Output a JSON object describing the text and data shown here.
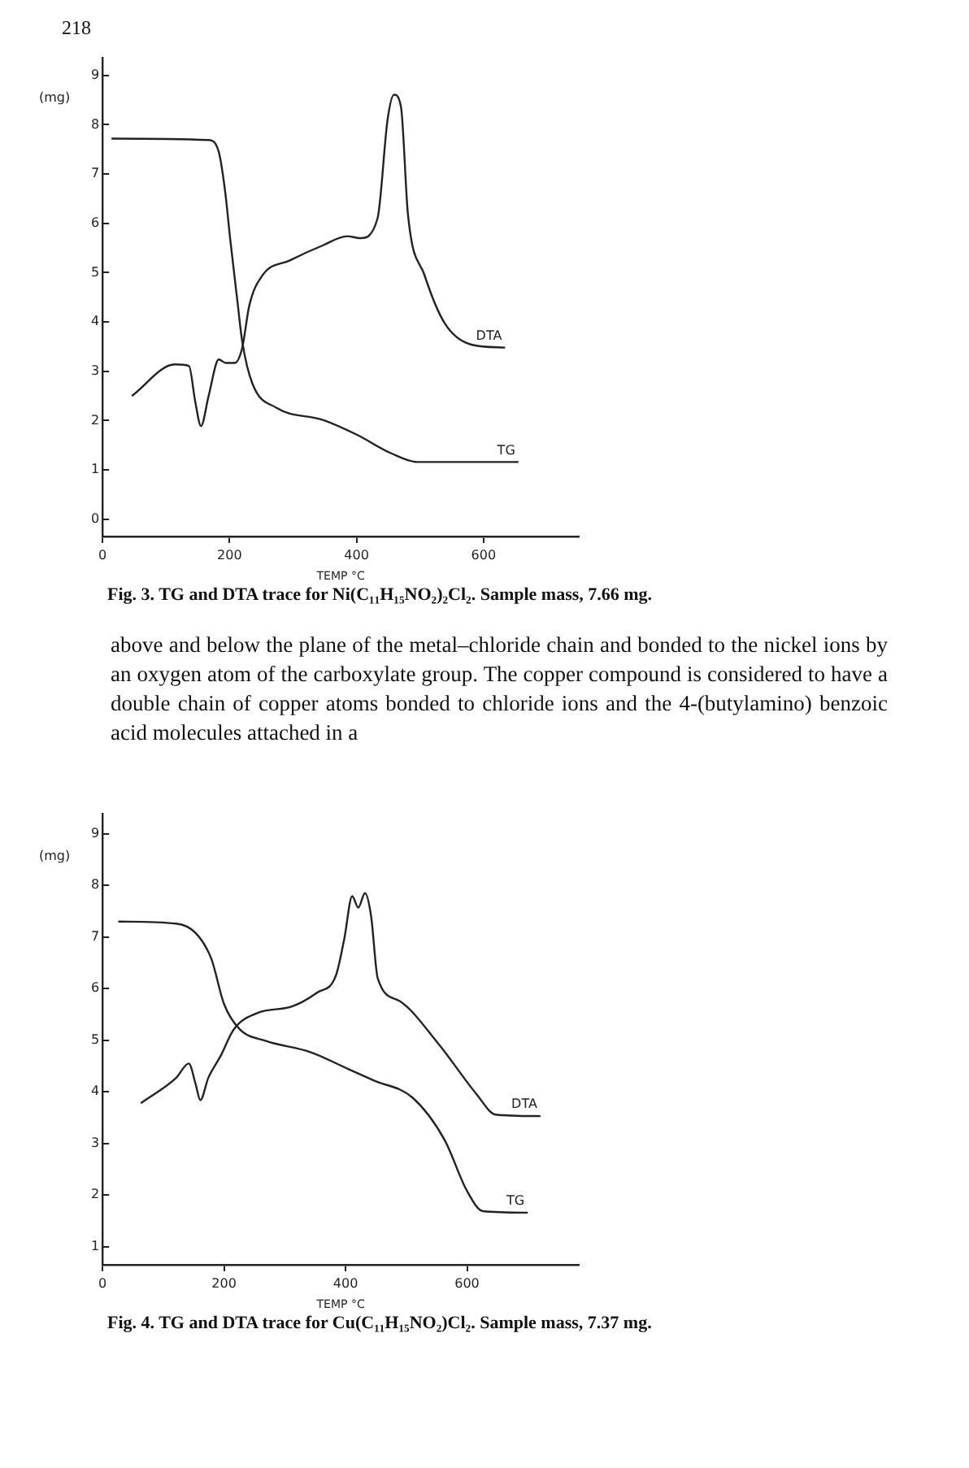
{
  "chart_data": [
    {
      "type": "line",
      "xlabel": "TEMP °C",
      "ylabel": "(mg)",
      "xlim": [
        0,
        750
      ],
      "ylim": [
        -0.35,
        9.35
      ],
      "xticks": [
        0,
        200,
        400,
        600
      ],
      "yticks": [
        0,
        1,
        2,
        3,
        4,
        5,
        6,
        7,
        8,
        9
      ],
      "grid": false,
      "legend": false,
      "marker": "none",
      "line_style": "solid",
      "series": [
        {
          "name": "TG",
          "color": "#222222",
          "x": [
            14,
            167,
            183,
            193,
            201,
            212,
            220,
            236,
            274,
            348,
            401,
            454,
            496,
            655
          ],
          "values": [
            7.72,
            7.69,
            7.45,
            6.65,
            5.68,
            4.46,
            3.6,
            2.75,
            2.26,
            2.01,
            1.71,
            1.34,
            1.16,
            1.16
          ]
        },
        {
          "name": "DTA",
          "color": "#222222",
          "x": [
            46,
            114,
            136,
            146,
            155,
            167,
            183,
            194,
            208,
            220,
            231,
            252,
            295,
            348,
            385,
            406,
            433,
            449,
            459,
            470,
            481,
            507,
            539,
            581,
            634
          ],
          "values": [
            2.5,
            3.14,
            3.11,
            2.38,
            1.89,
            2.5,
            3.24,
            3.17,
            3.17,
            3.48,
            4.33,
            4.95,
            5.25,
            5.56,
            5.74,
            5.7,
            6.1,
            8.12,
            8.61,
            8.36,
            6.17,
            4.95,
            3.97,
            3.54,
            3.48
          ]
        }
      ],
      "annotations": [
        "218",
        "Fig. 3. TG and DTA trace for Ni(C₁₁H₁₅NO₂)₂Cl₂. Sample mass, 7.66 mg.",
        "above and below the plane of the metal–chloride chain and bonded to the nickel ions by an oxygen atom of the carboxylate group. The copper compound is considered to have a double chain of copper atoms bonded to chloride ions and the 4-(butylamino) benzoic acid molecules attached in a"
      ]
    },
    {
      "type": "line",
      "xlabel": "TEMP °C",
      "ylabel": "(mg)",
      "xlim": [
        0,
        784
      ],
      "ylim": [
        0.65,
        9.38
      ],
      "xticks": [
        0,
        200,
        400,
        600
      ],
      "yticks": [
        1,
        2,
        3,
        4,
        5,
        6,
        7,
        8,
        9
      ],
      "grid": false,
      "legend": false,
      "marker": "none",
      "line_style": "solid",
      "series": [
        {
          "name": "TG",
          "color": "#222222",
          "x": [
            26,
            121,
            153,
            179,
            200,
            226,
            268,
            342,
            405,
            447,
            510,
            563,
            600,
            626,
            700
          ],
          "values": [
            7.3,
            7.26,
            7.08,
            6.58,
            5.7,
            5.21,
            4.99,
            4.77,
            4.44,
            4.22,
            3.89,
            3.07,
            2.08,
            1.69,
            1.66
          ]
        },
        {
          "name": "DTA",
          "color": "#222222",
          "x": [
            63,
            121,
            142,
            153,
            161,
            174,
            195,
            216,
            258,
            311,
            353,
            384,
            398,
            411,
            421,
            432,
            442,
            453,
            489,
            553,
            616,
            647,
            721
          ],
          "values": [
            3.78,
            4.27,
            4.55,
            4.16,
            3.84,
            4.27,
            4.71,
            5.21,
            5.54,
            5.65,
            5.92,
            6.25,
            6.97,
            7.79,
            7.57,
            7.85,
            7.41,
            6.2,
            5.76,
            4.93,
            3.95,
            3.56,
            3.53
          ]
        }
      ],
      "annotations": [
        "Fig. 4. TG and DTA trace for Cu(C₁₁H₁₅NO₂)Cl₂. Sample mass, 7.37 mg."
      ]
    }
  ]
}
